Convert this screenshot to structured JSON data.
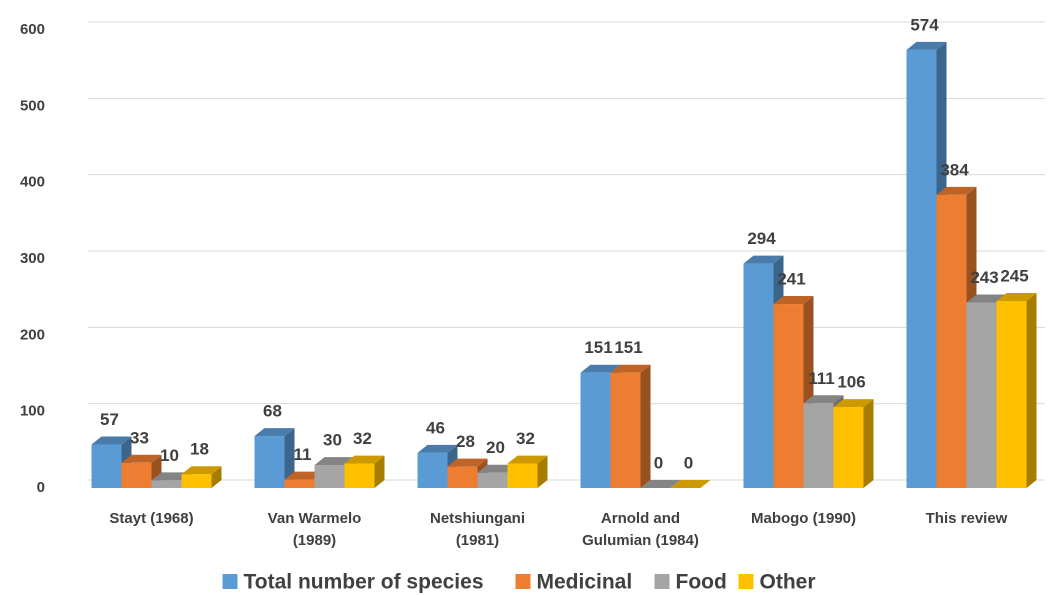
{
  "chart_data": {
    "type": "bar3d",
    "categories": [
      "Stayt (1968)",
      "Van Warmelo (1989)",
      "Netshiungani (1981)",
      "Arnold and Gulumian (1984)",
      "Mabogo (1990)",
      "This review"
    ],
    "series": [
      {
        "name": "Total number of species",
        "color": "#5b9bd5",
        "values": [
          57,
          68,
          46,
          151,
          294,
          574
        ]
      },
      {
        "name": "Medicinal",
        "color": "#ed7d31",
        "values": [
          33,
          11,
          28,
          151,
          241,
          384
        ]
      },
      {
        "name": "Food",
        "color": "#a5a5a5",
        "values": [
          10,
          30,
          20,
          0,
          111,
          243
        ]
      },
      {
        "name": "Other",
        "color": "#ffc000",
        "values": [
          18,
          32,
          32,
          0,
          106,
          245
        ]
      }
    ],
    "ylim": [
      0,
      600
    ],
    "yticks": [
      0,
      100,
      200,
      300,
      400,
      500,
      600
    ],
    "grid": true,
    "legend": "bottom"
  }
}
